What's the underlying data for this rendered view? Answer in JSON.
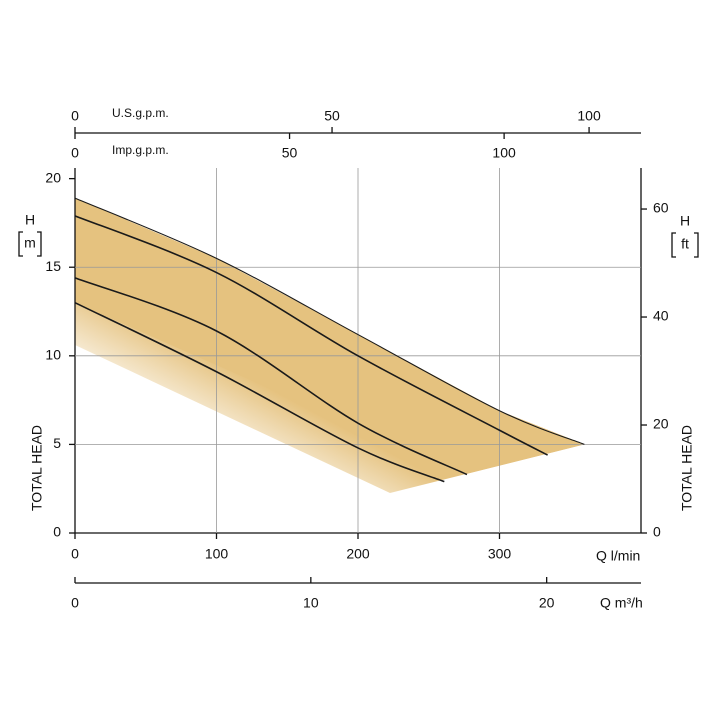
{
  "chart_data": {
    "type": "line",
    "xlabel": "Q l/min",
    "xlim": [
      0,
      400
    ],
    "xticks": [
      0,
      100,
      200,
      300
    ],
    "ylabel": "TOTAL HEAD",
    "ysymbol": "H",
    "yunit": "m",
    "ylim": [
      0,
      20.6
    ],
    "yticks": [
      0,
      5,
      10,
      15,
      20
    ],
    "y2label": "TOTAL HEAD",
    "y2symbol": "H",
    "y2unit": "ft",
    "y2lim": [
      0,
      67.6
    ],
    "y2ticks": [
      0,
      20,
      40,
      60
    ],
    "grid": true,
    "fill_color": "#e5c27f",
    "extra_x_axes": [
      {
        "label": "Q m³/h",
        "lim": [
          0,
          24
        ],
        "ticks": [
          0,
          10,
          20
        ],
        "position": "bottom"
      },
      {
        "label": "U.S.g.p.m.",
        "lim": [
          0,
          110.1
        ],
        "ticks": [
          0,
          50,
          100
        ],
        "position": "top-upper"
      },
      {
        "label": "Imp.g.p.m.",
        "lim": [
          0,
          131.9
        ],
        "ticks": [
          0,
          50,
          100
        ],
        "position": "top-lower"
      }
    ],
    "series": [
      {
        "color": "#1a1a1a",
        "x": [
          0,
          100,
          200,
          300,
          360
        ],
        "values": [
          18.9,
          15.5,
          11.2,
          6.9,
          5.0
        ]
      },
      {
        "color": "#1a1a1a",
        "x": [
          0,
          100,
          200,
          300,
          334
        ],
        "values": [
          17.9,
          14.7,
          10.0,
          5.8,
          4.4
        ]
      },
      {
        "color": "#1a1a1a",
        "x": [
          0,
          100,
          200,
          277
        ],
        "values": [
          14.4,
          11.4,
          6.2,
          3.3
        ]
      },
      {
        "color": "#1a1a1a",
        "x": [
          0,
          100,
          200,
          261
        ],
        "values": [
          13.0,
          9.1,
          4.8,
          2.9
        ]
      }
    ]
  }
}
